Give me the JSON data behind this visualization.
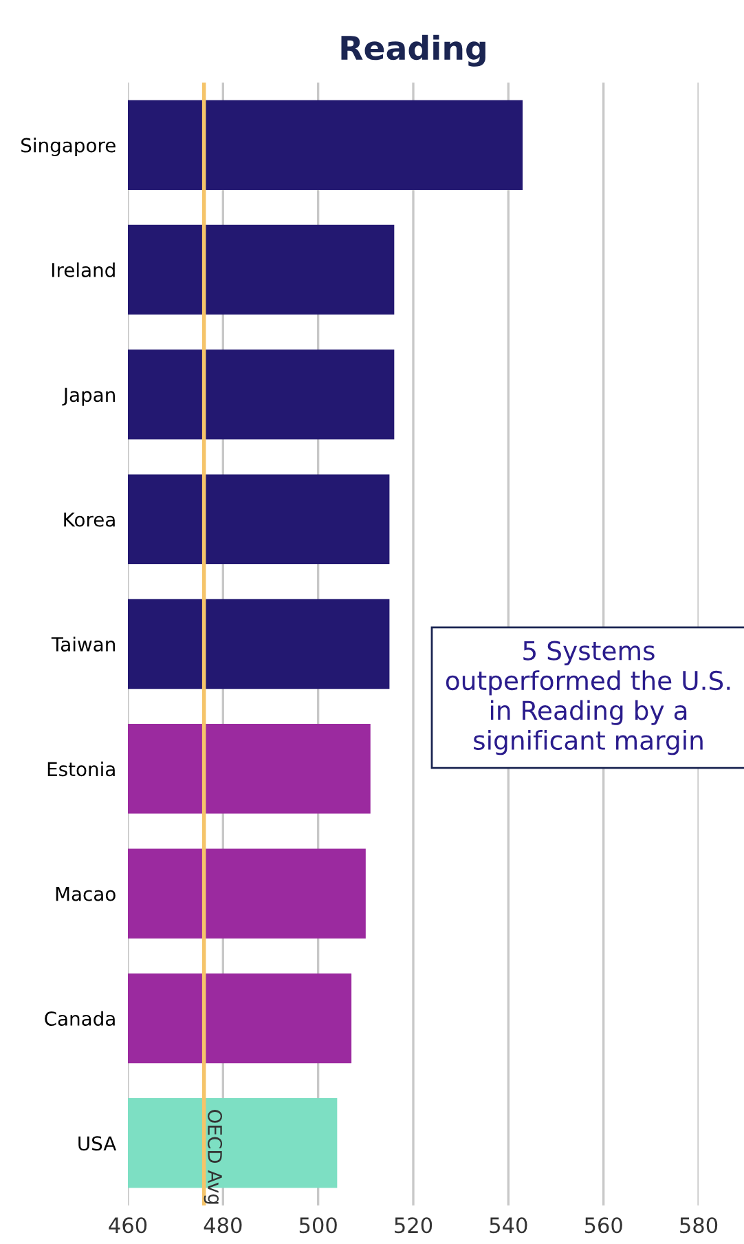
{
  "chart_data": {
    "type": "bar",
    "orientation": "horizontal",
    "title": "Reading",
    "categories": [
      "Singapore",
      "Ireland",
      "Japan",
      "Korea",
      "Taiwan",
      "Estonia",
      "Macao",
      "Canada",
      "USA"
    ],
    "values": [
      543,
      516,
      516,
      515,
      515,
      511,
      510,
      507,
      504
    ],
    "colors": [
      "#231871",
      "#231871",
      "#231871",
      "#231871",
      "#231871",
      "#9b2a9f",
      "#9b2a9f",
      "#9b2a9f",
      "#7ddfc3"
    ],
    "xlim": [
      460,
      580
    ],
    "xticks": [
      460,
      480,
      500,
      520,
      540,
      560,
      580
    ],
    "grid": "x",
    "ref_lines": [
      {
        "axis": "x",
        "value": 476,
        "label": "OECD Avg",
        "color": "#f5c46a"
      }
    ],
    "annotations": [
      "5 Systems outperformed the U.S. in Reading by a significant margin"
    ]
  }
}
